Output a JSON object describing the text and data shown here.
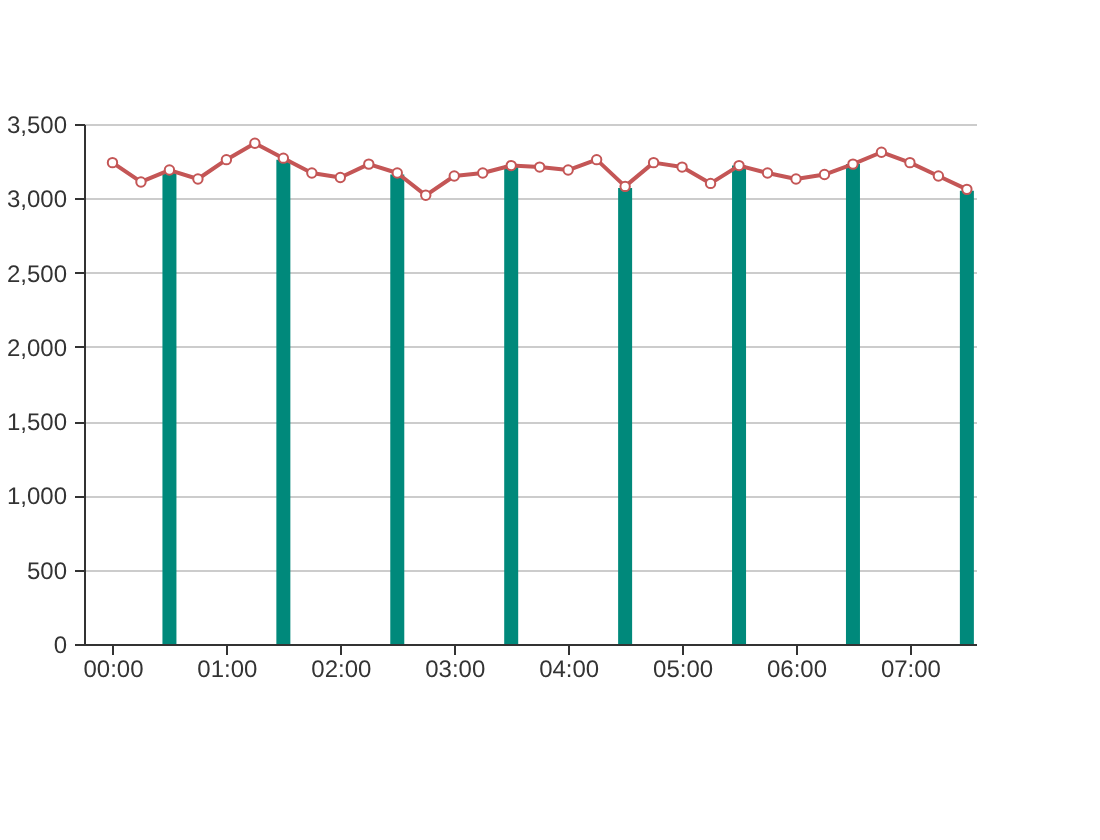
{
  "chart_data": {
    "type": "line",
    "xlim": [
      -0.25,
      7.58
    ],
    "xticks": [
      {
        "value": 0,
        "label": "00:00"
      },
      {
        "value": 1,
        "label": "01:00"
      },
      {
        "value": 2,
        "label": "02:00"
      },
      {
        "value": 3,
        "label": "03:00"
      },
      {
        "value": 4,
        "label": "04:00"
      },
      {
        "value": 5,
        "label": "05:00"
      },
      {
        "value": 6,
        "label": "06:00"
      },
      {
        "value": 7,
        "label": "07:00"
      }
    ],
    "ylim": [
      0,
      3500
    ],
    "yticks": [
      {
        "value": 0,
        "label": "0"
      },
      {
        "value": 500,
        "label": "500"
      },
      {
        "value": 1000,
        "label": "1,000"
      },
      {
        "value": 1500,
        "label": "1,500"
      },
      {
        "value": 2000,
        "label": "2,000"
      },
      {
        "value": 2500,
        "label": "2,500"
      },
      {
        "value": 3000,
        "label": "3,000"
      },
      {
        "value": 3500,
        "label": "3,500"
      }
    ],
    "grid": "y",
    "series": [
      {
        "type": "bar",
        "color": "#00897b",
        "x": [
          0.5,
          1.5,
          2.5,
          3.5,
          4.5,
          5.5,
          6.5,
          7.5
        ],
        "values": [
          3180,
          3260,
          3160,
          3220,
          3070,
          3220,
          3230,
          3050
        ]
      },
      {
        "color": "#c45656",
        "marker": "circle",
        "line_style": "solid",
        "x": [
          0,
          0.25,
          0.5,
          0.75,
          1,
          1.25,
          1.5,
          1.75,
          2,
          2.25,
          2.5,
          2.75,
          3,
          3.25,
          3.5,
          3.75,
          4,
          4.25,
          4.5,
          4.75,
          5,
          5.25,
          5.5,
          5.75,
          6,
          6.25,
          6.5,
          6.75,
          7,
          7.25,
          7.5
        ],
        "values": [
          3240,
          3110,
          3190,
          3130,
          3260,
          3370,
          3270,
          3170,
          3140,
          3230,
          3170,
          3020,
          3150,
          3170,
          3220,
          3210,
          3190,
          3260,
          3080,
          3240,
          3210,
          3100,
          3220,
          3170,
          3130,
          3160,
          3230,
          3310,
          3240,
          3150,
          3060
        ]
      }
    ]
  }
}
